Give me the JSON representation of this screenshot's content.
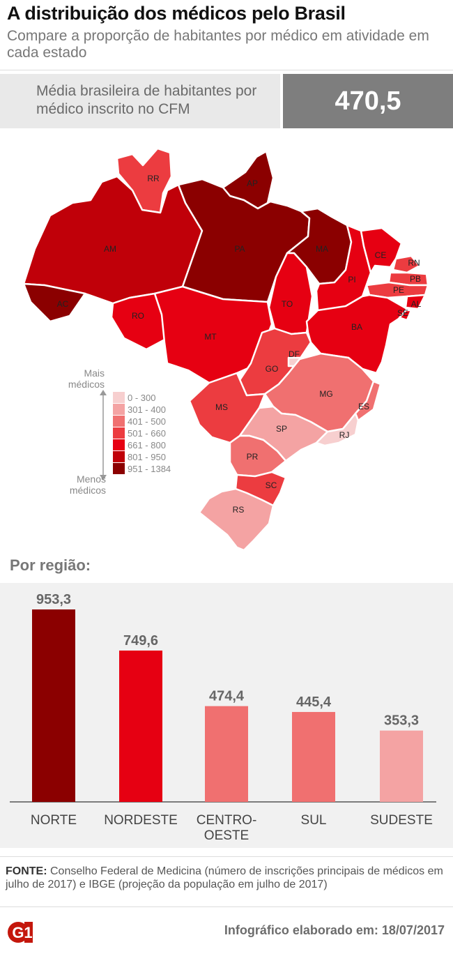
{
  "header": {
    "title": "A distribuição dos médicos pelo Brasil",
    "subtitle": "Compare a proporção de habitantes por médico em atividade em cada estado"
  },
  "average": {
    "label": "Média brasileira de habitantes por médico inscrito no CFM",
    "value": "470,5"
  },
  "legend": {
    "top_label": "Mais médicos",
    "bottom_label": "Menos médicos",
    "classes": [
      {
        "label": "0 - 300",
        "color": "#f7cfcf"
      },
      {
        "label": "301 - 400",
        "color": "#f4a3a3"
      },
      {
        "label": "401 - 500",
        "color": "#f07070"
      },
      {
        "label": "501 - 660",
        "color": "#ec3c40"
      },
      {
        "label": "661 - 800",
        "color": "#e60012"
      },
      {
        "label": "801 - 950",
        "color": "#c00009"
      },
      {
        "label": "951 - 1384",
        "color": "#8b0000"
      }
    ]
  },
  "map_states": [
    {
      "code": "RR",
      "color": "#ec3c40"
    },
    {
      "code": "AP",
      "color": "#8b0000"
    },
    {
      "code": "AM",
      "color": "#c00009"
    },
    {
      "code": "PA",
      "color": "#8b0000"
    },
    {
      "code": "MA",
      "color": "#8b0000"
    },
    {
      "code": "AC",
      "color": "#8b0000"
    },
    {
      "code": "RO",
      "color": "#e60012"
    },
    {
      "code": "TO",
      "color": "#e60012"
    },
    {
      "code": "PI",
      "color": "#e60012"
    },
    {
      "code": "CE",
      "color": "#e60012"
    },
    {
      "code": "RN",
      "color": "#ec3c40"
    },
    {
      "code": "PB",
      "color": "#ec3c40"
    },
    {
      "code": "PE",
      "color": "#ec3c40"
    },
    {
      "code": "AL",
      "color": "#e60012"
    },
    {
      "code": "SE",
      "color": "#e60012"
    },
    {
      "code": "BA",
      "color": "#e60012"
    },
    {
      "code": "MT",
      "color": "#e60012"
    },
    {
      "code": "GO",
      "color": "#ec3c40"
    },
    {
      "code": "DF",
      "color": "#f7cfcf"
    },
    {
      "code": "MG",
      "color": "#f07070"
    },
    {
      "code": "ES",
      "color": "#f07070"
    },
    {
      "code": "MS",
      "color": "#ec3c40"
    },
    {
      "code": "SP",
      "color": "#f4a3a3"
    },
    {
      "code": "RJ",
      "color": "#f7cfcf"
    },
    {
      "code": "PR",
      "color": "#f07070"
    },
    {
      "code": "SC",
      "color": "#ec3c40"
    },
    {
      "code": "RS",
      "color": "#f4a3a3"
    }
  ],
  "region_section_title": "Por região:",
  "chart_data": {
    "type": "bar",
    "categories": [
      "NORTE",
      "NORDESTE",
      "CENTRO-OESTE",
      "SUL",
      "SUDESTE"
    ],
    "category_lines": [
      [
        "NORTE"
      ],
      [
        "NORDESTE"
      ],
      [
        "CENTRO-",
        "OESTE"
      ],
      [
        "SUL"
      ],
      [
        "SUDESTE"
      ]
    ],
    "values": [
      953.3,
      749.6,
      474.4,
      445.4,
      353.3
    ],
    "value_labels": [
      "953,3",
      "749,6",
      "474,4",
      "445,4",
      "353,3"
    ],
    "colors": [
      "#8b0000",
      "#e60012",
      "#f07070",
      "#f07070",
      "#f4a3a3"
    ],
    "ylim": [
      0,
      953.3
    ],
    "grid": false
  },
  "footer": {
    "source_label": "FONTE:",
    "source_text": "Conselho Federal de Medicina (número de inscrições principais de médicos em julho de 2017) e IBGE (projeção da população em julho de 2017)",
    "logo": "G1",
    "date_text": "Infográfico elaborado em: 18/07/2017"
  }
}
